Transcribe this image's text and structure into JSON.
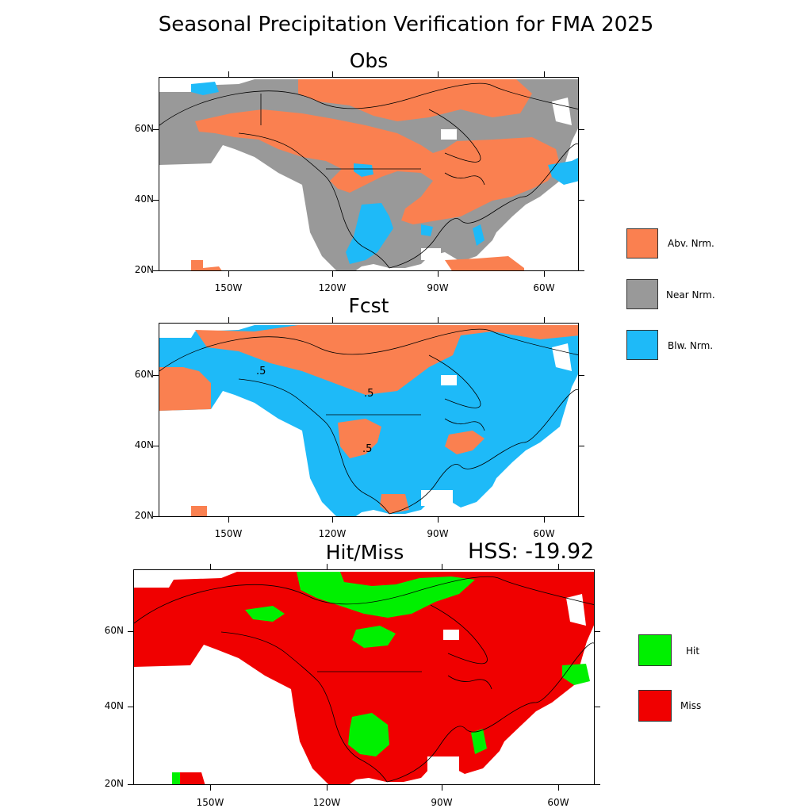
{
  "title": "Seasonal Precipitation Verification for FMA 2025",
  "colors": {
    "above": "#fa8050",
    "near": "#999999",
    "below": "#1ebaf8",
    "hit": "#00f000",
    "miss": "#f00000"
  },
  "panels": {
    "obs": {
      "title": "Obs",
      "lat_labels": [
        "60N",
        "40N",
        "20N"
      ],
      "lon_labels": [
        "150W",
        "120W",
        "90W",
        "60W"
      ]
    },
    "fcst": {
      "title": "Fcst",
      "lat_labels": [
        "60N",
        "40N",
        "20N"
      ],
      "lon_labels": [
        "150W",
        "120W",
        "90W",
        "60W"
      ],
      "contour_labels": [
        ".5",
        ".5",
        ".5"
      ]
    },
    "hitmiss": {
      "title": "Hit/Miss",
      "score": "HSS: -19.92",
      "lat_labels": [
        "60N",
        "40N",
        "20N"
      ],
      "lon_labels": [
        "150W",
        "120W",
        "90W",
        "60W"
      ]
    }
  },
  "legend_categories": {
    "items": [
      {
        "label": "Abv. Nrm.",
        "color": "#fa8050"
      },
      {
        "label": "Near Nrm.",
        "color": "#999999"
      },
      {
        "label": "Blw. Nrm.",
        "color": "#1ebaf8"
      }
    ]
  },
  "legend_hitmiss": {
    "items": [
      {
        "label": "Hit",
        "color": "#00f000"
      },
      {
        "label": "Miss",
        "color": "#f00000"
      }
    ]
  }
}
